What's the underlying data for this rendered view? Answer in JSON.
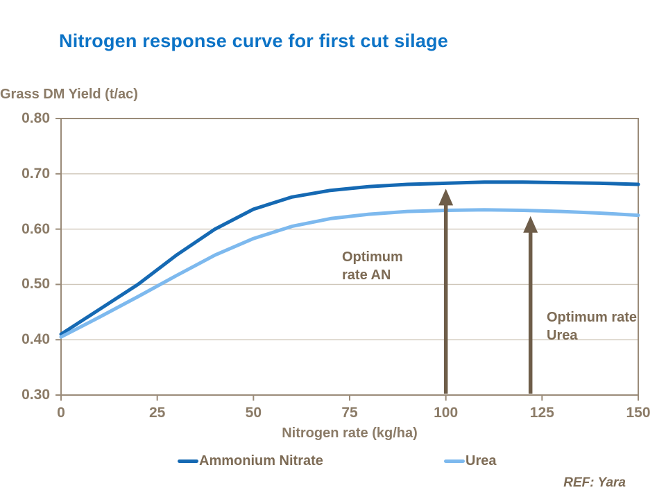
{
  "page": {
    "title": "Nitrogen response curve for first cut silage",
    "ref": "REF: Yara"
  },
  "colors": {
    "title_blue": "#0c73c6",
    "ammonium_nitrate_line": "#1569b3",
    "urea_line": "#7db9ee",
    "axis_text": "#8b7b67",
    "annotation_text": "#7d6b55",
    "arrow": "#6e5d49",
    "frame": "#9a8b79",
    "grid": "#cfc7ba"
  },
  "chart_data": {
    "type": "line",
    "title": "Nitrogen response curve for first cut silage",
    "ylabel": "Grass DM Yield (t/ac)",
    "xlabel": "Nitrogen rate (kg/ha)",
    "xlim": [
      0,
      150
    ],
    "ylim": [
      0.3,
      0.8
    ],
    "xticks": [
      0,
      25,
      50,
      75,
      100,
      125,
      150
    ],
    "yticks": [
      0.3,
      0.4,
      0.5,
      0.6,
      0.7,
      0.8
    ],
    "ytick_decimals": 2,
    "grid": "horizontal gridlines only, full outer frame",
    "legend_position": "bottom",
    "x": [
      0,
      10,
      20,
      30,
      40,
      50,
      60,
      70,
      80,
      90,
      100,
      110,
      120,
      130,
      140,
      150
    ],
    "series": [
      {
        "name": "Ammonium Nitrate",
        "color": "#1569b3",
        "values": [
          0.41,
          0.455,
          0.5,
          0.553,
          0.6,
          0.636,
          0.658,
          0.67,
          0.677,
          0.681,
          0.683,
          0.685,
          0.685,
          0.684,
          0.683,
          0.681
        ]
      },
      {
        "name": "Urea",
        "color": "#7db9ee",
        "values": [
          0.405,
          0.441,
          0.478,
          0.516,
          0.553,
          0.583,
          0.605,
          0.619,
          0.627,
          0.632,
          0.634,
          0.635,
          0.634,
          0.632,
          0.629,
          0.625
        ]
      }
    ],
    "annotations": [
      {
        "label": "Optimum rate AN",
        "x": 100,
        "series_index": 0
      },
      {
        "label": "Optimum rate Urea",
        "x": 122,
        "series_index": 1
      }
    ]
  }
}
